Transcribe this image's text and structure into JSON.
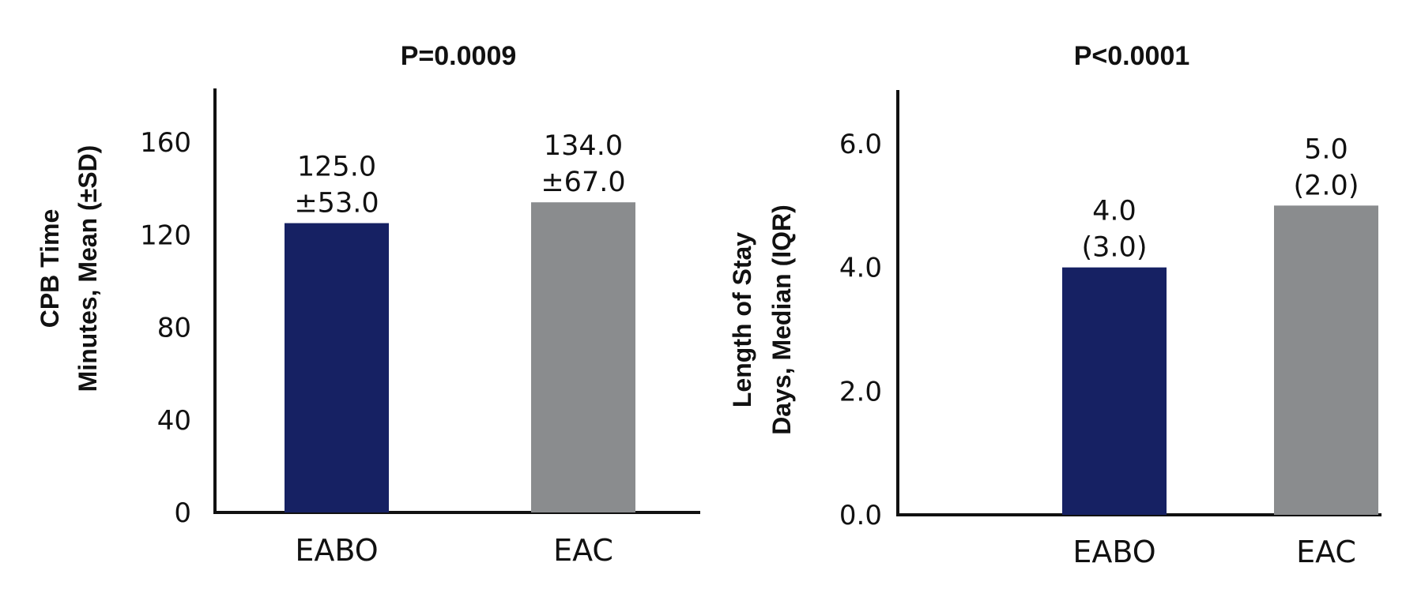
{
  "chart_data": [
    {
      "type": "bar",
      "title": "P=0.0009",
      "ylabel_lines": [
        "CPB Time",
        "Minutes, Mean (±SD)"
      ],
      "categories": [
        "EABO",
        "EAC"
      ],
      "values": [
        125.0,
        134.0
      ],
      "data_labels": [
        [
          "125.0",
          "±53.0"
        ],
        [
          "134.0",
          "±67.0"
        ]
      ],
      "ylim": [
        0,
        180
      ],
      "yticks": [
        0,
        40,
        80,
        120,
        160
      ],
      "ytick_labels": [
        "0",
        "40",
        "80",
        "120",
        "160"
      ],
      "colors": [
        "#162163",
        "#8a8c8e"
      ],
      "grid": false
    },
    {
      "type": "bar",
      "title": "P<0.0001",
      "ylabel_lines": [
        "Length of Stay",
        "Days, Median (IQR)"
      ],
      "categories": [
        "EABO",
        "EAC"
      ],
      "values": [
        4.0,
        5.0
      ],
      "data_labels": [
        [
          "4.0",
          "(3.0)"
        ],
        [
          "5.0",
          "(2.0)"
        ]
      ],
      "ylim": [
        0,
        7
      ],
      "yticks": [
        0,
        2,
        4,
        6
      ],
      "ytick_labels": [
        "0.0",
        "2.0",
        "4.0",
        "6.0"
      ],
      "colors": [
        "#162163",
        "#8a8c8e"
      ],
      "grid": false
    }
  ]
}
